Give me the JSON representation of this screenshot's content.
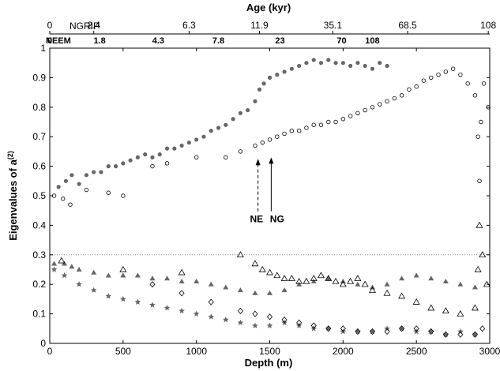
{
  "chart_data": {
    "type": "scatter",
    "xlabel": "Depth (m)",
    "ylabel": "Eigenvalues of a",
    "ylabel_superscript": "(2)",
    "top_axis_title": "Age (kyr)",
    "xlim": [
      0,
      3000
    ],
    "ylim": [
      0,
      1
    ],
    "x_ticks": [
      "0",
      "500",
      "1000",
      "1500",
      "2000",
      "2500",
      "3000"
    ],
    "y_ticks": [
      "0",
      "0.1",
      "0.2",
      "0.3",
      "0.4",
      "0.5",
      "0.6",
      "0.7",
      "0.8",
      "0.9",
      "1"
    ],
    "reference_line_y": 0.3,
    "colors": {
      "grip_gray": "#666666",
      "black": "#000000",
      "dotted": "#888888"
    },
    "ngrip_axis": {
      "name": "NGRIP",
      "ticks": [
        {
          "depth": 0,
          "label": "0"
        },
        {
          "depth": 300,
          "label": "2.4"
        },
        {
          "depth": 950,
          "label": "6.3"
        },
        {
          "depth": 1430,
          "label": "11.9"
        },
        {
          "depth": 1930,
          "label": "35.1"
        },
        {
          "depth": 2440,
          "label": "68.5"
        },
        {
          "depth": 2990,
          "label": "108"
        }
      ]
    },
    "neem_axis": {
      "name": "NEEM",
      "ticks": [
        {
          "depth": 0,
          "label": "0"
        },
        {
          "depth": 340,
          "label": "1.8"
        },
        {
          "depth": 740,
          "label": "4.3"
        },
        {
          "depth": 1150,
          "label": "7.8"
        },
        {
          "depth": 1570,
          "label": "23"
        },
        {
          "depth": 1990,
          "label": "70"
        },
        {
          "depth": 2200,
          "label": "108"
        }
      ]
    },
    "annotations": [
      {
        "text": "NE",
        "x": 1410,
        "y": 0.41,
        "arrow_tip": [
          1420,
          0.625
        ],
        "style": "dashed"
      },
      {
        "text": "NG",
        "x": 1550,
        "y": 0.41,
        "arrow_tip": [
          1510,
          0.63
        ],
        "style": "solid"
      }
    ],
    "series": [
      {
        "marker": "filled-circle",
        "color": "#666666",
        "points": [
          [
            60,
            0.53
          ],
          [
            110,
            0.55
          ],
          [
            150,
            0.57
          ],
          [
            200,
            0.54
          ],
          [
            250,
            0.57
          ],
          [
            300,
            0.58
          ],
          [
            350,
            0.58
          ],
          [
            400,
            0.6
          ],
          [
            450,
            0.6
          ],
          [
            500,
            0.61
          ],
          [
            550,
            0.62
          ],
          [
            600,
            0.63
          ],
          [
            650,
            0.64
          ],
          [
            700,
            0.63
          ],
          [
            750,
            0.64
          ],
          [
            800,
            0.66
          ],
          [
            850,
            0.66
          ],
          [
            900,
            0.67
          ],
          [
            950,
            0.68
          ],
          [
            1000,
            0.69
          ],
          [
            1050,
            0.7
          ],
          [
            1100,
            0.72
          ],
          [
            1150,
            0.73
          ],
          [
            1200,
            0.74
          ],
          [
            1250,
            0.76
          ],
          [
            1300,
            0.78
          ],
          [
            1350,
            0.79
          ],
          [
            1400,
            0.82
          ],
          [
            1430,
            0.86
          ],
          [
            1460,
            0.88
          ],
          [
            1500,
            0.9
          ],
          [
            1550,
            0.91
          ],
          [
            1600,
            0.92
          ],
          [
            1650,
            0.93
          ],
          [
            1700,
            0.94
          ],
          [
            1750,
            0.95
          ],
          [
            1800,
            0.96
          ],
          [
            1850,
            0.95
          ],
          [
            1900,
            0.96
          ],
          [
            1950,
            0.95
          ],
          [
            2000,
            0.95
          ],
          [
            2050,
            0.94
          ],
          [
            2100,
            0.95
          ],
          [
            2150,
            0.94
          ],
          [
            2200,
            0.93
          ],
          [
            2250,
            0.95
          ],
          [
            2300,
            0.94
          ]
        ]
      },
      {
        "marker": "open-circle",
        "color": "#000000",
        "points": [
          [
            30,
            0.5
          ],
          [
            90,
            0.49
          ],
          [
            140,
            0.47
          ],
          [
            250,
            0.52
          ],
          [
            400,
            0.51
          ],
          [
            500,
            0.5
          ],
          [
            700,
            0.6
          ],
          [
            800,
            0.61
          ],
          [
            1000,
            0.63
          ],
          [
            1200,
            0.63
          ],
          [
            1300,
            0.65
          ],
          [
            1400,
            0.67
          ],
          [
            1450,
            0.68
          ],
          [
            1500,
            0.69
          ],
          [
            1550,
            0.7
          ],
          [
            1600,
            0.71
          ],
          [
            1650,
            0.72
          ],
          [
            1700,
            0.72
          ],
          [
            1750,
            0.73
          ],
          [
            1800,
            0.74
          ],
          [
            1850,
            0.74
          ],
          [
            1900,
            0.75
          ],
          [
            1950,
            0.75
          ],
          [
            2000,
            0.76
          ],
          [
            2050,
            0.77
          ],
          [
            2100,
            0.78
          ],
          [
            2150,
            0.79
          ],
          [
            2200,
            0.8
          ],
          [
            2250,
            0.81
          ],
          [
            2300,
            0.82
          ],
          [
            2350,
            0.83
          ],
          [
            2400,
            0.84
          ],
          [
            2450,
            0.86
          ],
          [
            2500,
            0.87
          ],
          [
            2550,
            0.89
          ],
          [
            2600,
            0.9
          ],
          [
            2650,
            0.91
          ],
          [
            2700,
            0.92
          ],
          [
            2750,
            0.93
          ],
          [
            2800,
            0.91
          ],
          [
            2850,
            0.88
          ],
          [
            2900,
            0.84
          ],
          [
            2920,
            0.7
          ],
          [
            2930,
            0.55
          ],
          [
            2940,
            0.75
          ],
          [
            2960,
            0.88
          ],
          [
            2990,
            0.8
          ]
        ]
      },
      {
        "marker": "filled-triangle",
        "color": "#666666",
        "points": [
          [
            30,
            0.27
          ],
          [
            100,
            0.27
          ],
          [
            150,
            0.26
          ],
          [
            200,
            0.25
          ],
          [
            300,
            0.24
          ],
          [
            400,
            0.23
          ],
          [
            500,
            0.23
          ],
          [
            600,
            0.23
          ],
          [
            700,
            0.22
          ],
          [
            800,
            0.22
          ],
          [
            900,
            0.21
          ],
          [
            1000,
            0.21
          ],
          [
            1100,
            0.2
          ],
          [
            1200,
            0.19
          ],
          [
            1300,
            0.18
          ],
          [
            1400,
            0.17
          ],
          [
            1500,
            0.17
          ],
          [
            1600,
            0.18
          ],
          [
            1700,
            0.2
          ],
          [
            1800,
            0.21
          ],
          [
            1900,
            0.22
          ],
          [
            2000,
            0.21
          ],
          [
            2100,
            0.2
          ],
          [
            2200,
            0.19
          ],
          [
            2300,
            0.2
          ],
          [
            2400,
            0.22
          ],
          [
            2500,
            0.23
          ],
          [
            2600,
            0.22
          ],
          [
            2700,
            0.21
          ],
          [
            2800,
            0.2
          ],
          [
            2900,
            0.19
          ]
        ]
      },
      {
        "marker": "open-triangle",
        "color": "#000000",
        "points": [
          [
            80,
            0.28
          ],
          [
            500,
            0.25
          ],
          [
            900,
            0.24
          ],
          [
            1300,
            0.3
          ],
          [
            1400,
            0.27
          ],
          [
            1450,
            0.25
          ],
          [
            1500,
            0.24
          ],
          [
            1550,
            0.23
          ],
          [
            1600,
            0.22
          ],
          [
            1650,
            0.22
          ],
          [
            1700,
            0.21
          ],
          [
            1750,
            0.21
          ],
          [
            1800,
            0.22
          ],
          [
            1850,
            0.23
          ],
          [
            1900,
            0.22
          ],
          [
            1950,
            0.21
          ],
          [
            2000,
            0.2
          ],
          [
            2050,
            0.21
          ],
          [
            2100,
            0.22
          ],
          [
            2150,
            0.2
          ],
          [
            2200,
            0.18
          ],
          [
            2300,
            0.17
          ],
          [
            2400,
            0.16
          ],
          [
            2500,
            0.14
          ],
          [
            2600,
            0.12
          ],
          [
            2700,
            0.11
          ],
          [
            2800,
            0.1
          ],
          [
            2900,
            0.12
          ],
          [
            2920,
            0.25
          ],
          [
            2930,
            0.4
          ],
          [
            2950,
            0.3
          ],
          [
            2980,
            0.2
          ]
        ]
      },
      {
        "marker": "star",
        "color": "#666666",
        "points": [
          [
            30,
            0.25
          ],
          [
            100,
            0.23
          ],
          [
            200,
            0.2
          ],
          [
            300,
            0.18
          ],
          [
            400,
            0.16
          ],
          [
            500,
            0.15
          ],
          [
            600,
            0.14
          ],
          [
            700,
            0.13
          ],
          [
            800,
            0.12
          ],
          [
            900,
            0.11
          ],
          [
            1000,
            0.1
          ],
          [
            1100,
            0.09
          ],
          [
            1200,
            0.08
          ],
          [
            1300,
            0.07
          ],
          [
            1400,
            0.06
          ],
          [
            1500,
            0.06
          ],
          [
            1600,
            0.07
          ],
          [
            1700,
            0.06
          ],
          [
            1800,
            0.05
          ],
          [
            1900,
            0.05
          ],
          [
            2000,
            0.04
          ],
          [
            2100,
            0.04
          ],
          [
            2200,
            0.04
          ],
          [
            2300,
            0.05
          ],
          [
            2400,
            0.05
          ],
          [
            2500,
            0.04
          ],
          [
            2600,
            0.04
          ],
          [
            2700,
            0.03
          ],
          [
            2800,
            0.04
          ],
          [
            2900,
            0.03
          ]
        ]
      },
      {
        "marker": "open-diamond",
        "color": "#000000",
        "points": [
          [
            700,
            0.2
          ],
          [
            900,
            0.17
          ],
          [
            1100,
            0.14
          ],
          [
            1300,
            0.11
          ],
          [
            1400,
            0.1
          ],
          [
            1500,
            0.09
          ],
          [
            1600,
            0.08
          ],
          [
            1700,
            0.07
          ],
          [
            1800,
            0.06
          ],
          [
            1900,
            0.05
          ],
          [
            2000,
            0.05
          ],
          [
            2100,
            0.04
          ],
          [
            2200,
            0.04
          ],
          [
            2300,
            0.04
          ],
          [
            2400,
            0.05
          ],
          [
            2500,
            0.05
          ],
          [
            2600,
            0.04
          ],
          [
            2700,
            0.03
          ],
          [
            2800,
            0.03
          ],
          [
            2900,
            0.03
          ],
          [
            2950,
            0.05
          ]
        ]
      }
    ]
  }
}
